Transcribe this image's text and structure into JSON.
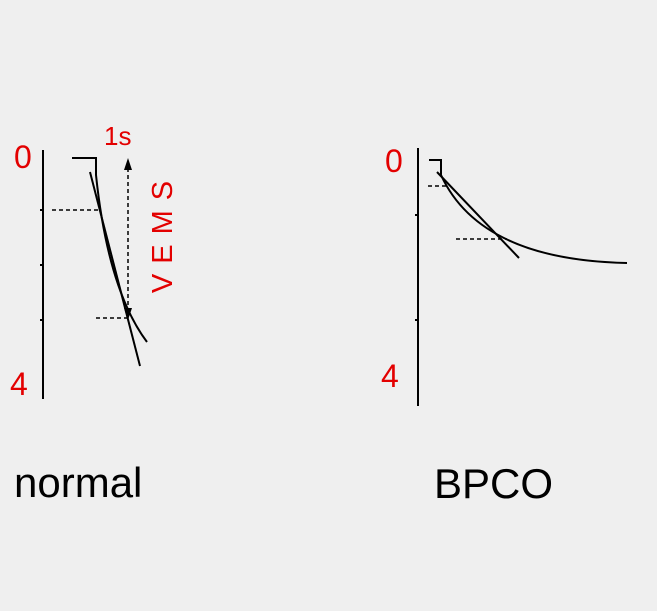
{
  "panels": [
    {
      "axis_top": "0",
      "axis_bottom": "4",
      "time_label": "1s",
      "vertical_label": "VEMS",
      "caption": "normal"
    },
    {
      "axis_top": "0",
      "axis_bottom": "4",
      "caption": "BPCO"
    }
  ]
}
